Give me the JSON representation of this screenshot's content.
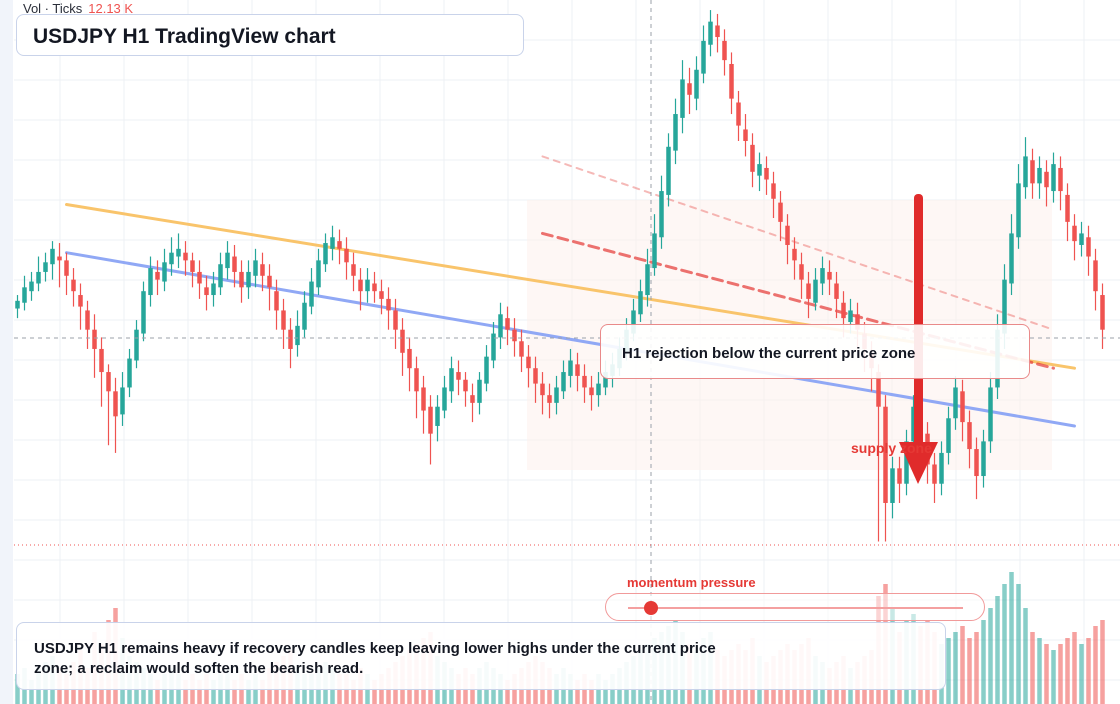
{
  "header": {
    "volume_label": "Vol · Ticks",
    "volume_value": "12.13 K",
    "title": "USDJPY H1 TradingView chart"
  },
  "annotations": {
    "rejection_note": "H1 rejection below the current price zone",
    "supply_label": "supply zone",
    "momentum_label": "momentum pressure",
    "momentum_level": 0.07,
    "summary": "USDJPY H1 remains heavy if recovery candles keep leaving lower highs under the current price zone; a reclaim would soften the bearish read."
  },
  "colors": {
    "bull": "#26a69a",
    "bear": "#ef5350",
    "resistance_line": "#f9c46b",
    "support_line": "#90a8f5",
    "arrow": "#e02b2b",
    "accent": "#e53935"
  },
  "chart_data": {
    "type": "candlestick",
    "timeframe": "H1",
    "symbol": "USDJPY",
    "y_axis": "unlabeled",
    "note": "Price values are relative levels (no price scale visible); volume values are relative.",
    "candles": [
      [
        161,
        165,
        156,
        168,
        153,
        5
      ],
      [
        164,
        172,
        160,
        178,
        150,
        6
      ],
      [
        170,
        175,
        165,
        180,
        162,
        4
      ],
      [
        174,
        180,
        170,
        188,
        166,
        6
      ],
      [
        180,
        185,
        175,
        190,
        172,
        7
      ],
      [
        184,
        192,
        176,
        196,
        170,
        8
      ],
      [
        188,
        186,
        172,
        195,
        168,
        6
      ],
      [
        186,
        178,
        168,
        190,
        160,
        5
      ],
      [
        176,
        170,
        162,
        182,
        155,
        7
      ],
      [
        168,
        162,
        150,
        174,
        120,
        9
      ],
      [
        160,
        150,
        140,
        165,
        130,
        6
      ],
      [
        150,
        140,
        125,
        158,
        40,
        12
      ],
      [
        140,
        128,
        110,
        146,
        100,
        10
      ],
      [
        128,
        118,
        90,
        132,
        80,
        14
      ],
      [
        118,
        105,
        86,
        125,
        70,
        16
      ],
      [
        106,
        120,
        100,
        128,
        96,
        11
      ],
      [
        120,
        135,
        115,
        140,
        110,
        8
      ],
      [
        134,
        150,
        130,
        155,
        124,
        7
      ],
      [
        148,
        170,
        144,
        175,
        140,
        6
      ],
      [
        168,
        182,
        162,
        188,
        156,
        5
      ],
      [
        180,
        176,
        168,
        186,
        160,
        4
      ],
      [
        175,
        185,
        170,
        192,
        165,
        5
      ],
      [
        184,
        190,
        178,
        198,
        172,
        6
      ],
      [
        188,
        192,
        182,
        200,
        176,
        5
      ],
      [
        190,
        186,
        178,
        196,
        172,
        4
      ],
      [
        186,
        180,
        172,
        190,
        166,
        5
      ],
      [
        180,
        174,
        166,
        186,
        160,
        4
      ],
      [
        172,
        168,
        160,
        178,
        154,
        5
      ],
      [
        168,
        174,
        162,
        180,
        156,
        4
      ],
      [
        172,
        184,
        168,
        190,
        164,
        5
      ],
      [
        182,
        190,
        176,
        196,
        170,
        6
      ],
      [
        188,
        180,
        172,
        194,
        166,
        4
      ],
      [
        180,
        172,
        164,
        186,
        158,
        5
      ],
      [
        172,
        180,
        166,
        186,
        160,
        4
      ],
      [
        178,
        186,
        172,
        192,
        168,
        5
      ],
      [
        184,
        178,
        170,
        190,
        164,
        4
      ],
      [
        178,
        172,
        160,
        184,
        155,
        6
      ],
      [
        170,
        160,
        150,
        176,
        145,
        7
      ],
      [
        160,
        150,
        140,
        166,
        120,
        8
      ],
      [
        150,
        140,
        130,
        156,
        115,
        9
      ],
      [
        142,
        152,
        136,
        160,
        128,
        6
      ],
      [
        150,
        164,
        146,
        170,
        140,
        5
      ],
      [
        162,
        175,
        158,
        182,
        150,
        5
      ],
      [
        172,
        186,
        168,
        192,
        162,
        6
      ],
      [
        184,
        195,
        180,
        200,
        174,
        7
      ],
      [
        192,
        198,
        186,
        204,
        180,
        6
      ],
      [
        196,
        192,
        184,
        202,
        178,
        5
      ],
      [
        192,
        185,
        176,
        198,
        170,
        5
      ],
      [
        184,
        178,
        170,
        190,
        164,
        4
      ],
      [
        176,
        170,
        160,
        182,
        154,
        6
      ],
      [
        170,
        176,
        164,
        182,
        160,
        5
      ],
      [
        174,
        170,
        164,
        180,
        158,
        4
      ],
      [
        170,
        166,
        158,
        176,
        150,
        5
      ],
      [
        166,
        160,
        150,
        172,
        144,
        6
      ],
      [
        160,
        150,
        140,
        166,
        134,
        7
      ],
      [
        150,
        138,
        126,
        156,
        118,
        8
      ],
      [
        140,
        130,
        118,
        146,
        110,
        9
      ],
      [
        130,
        118,
        104,
        136,
        96,
        10
      ],
      [
        120,
        108,
        96,
        126,
        86,
        11
      ],
      [
        110,
        96,
        80,
        116,
        70,
        12
      ],
      [
        100,
        110,
        92,
        116,
        80,
        8
      ],
      [
        108,
        120,
        104,
        126,
        98,
        7
      ],
      [
        118,
        130,
        112,
        136,
        106,
        6
      ],
      [
        128,
        124,
        116,
        134,
        110,
        5
      ],
      [
        124,
        118,
        110,
        128,
        104,
        6
      ],
      [
        116,
        112,
        102,
        122,
        96,
        5
      ],
      [
        112,
        124,
        106,
        128,
        100,
        6
      ],
      [
        122,
        136,
        118,
        142,
        112,
        7
      ],
      [
        134,
        148,
        130,
        154,
        126,
        6
      ],
      [
        146,
        158,
        140,
        164,
        134,
        5
      ],
      [
        156,
        150,
        142,
        162,
        136,
        4
      ],
      [
        150,
        144,
        136,
        156,
        130,
        5
      ],
      [
        144,
        136,
        128,
        150,
        122,
        6
      ],
      [
        136,
        130,
        120,
        142,
        114,
        7
      ],
      [
        130,
        122,
        112,
        136,
        106,
        8
      ],
      [
        122,
        116,
        106,
        128,
        100,
        7
      ],
      [
        116,
        112,
        104,
        122,
        98,
        6
      ],
      [
        112,
        120,
        106,
        126,
        100,
        5
      ],
      [
        118,
        128,
        114,
        134,
        108,
        6
      ],
      [
        126,
        134,
        120,
        140,
        116,
        5
      ],
      [
        132,
        126,
        118,
        138,
        112,
        4
      ],
      [
        126,
        120,
        112,
        132,
        104,
        5
      ],
      [
        120,
        116,
        108,
        126,
        100,
        4
      ],
      [
        116,
        122,
        110,
        128,
        104,
        5
      ],
      [
        120,
        128,
        116,
        134,
        112,
        4
      ],
      [
        126,
        132,
        120,
        138,
        116,
        5
      ],
      [
        130,
        140,
        126,
        146,
        120,
        6
      ],
      [
        138,
        150,
        134,
        156,
        130,
        7
      ],
      [
        148,
        160,
        144,
        166,
        140,
        8
      ],
      [
        158,
        170,
        154,
        176,
        150,
        9
      ],
      [
        168,
        184,
        162,
        192,
        158,
        10
      ],
      [
        182,
        200,
        178,
        210,
        172,
        11
      ],
      [
        198,
        222,
        192,
        230,
        188,
        12
      ],
      [
        220,
        245,
        214,
        252,
        206,
        13
      ],
      [
        243,
        262,
        236,
        270,
        230,
        14
      ],
      [
        260,
        280,
        252,
        290,
        246,
        12
      ],
      [
        278,
        272,
        262,
        286,
        256,
        10
      ],
      [
        270,
        285,
        264,
        292,
        258,
        9
      ],
      [
        283,
        300,
        278,
        308,
        272,
        11
      ],
      [
        298,
        310,
        292,
        316,
        286,
        12
      ],
      [
        308,
        302,
        294,
        314,
        290,
        9
      ],
      [
        300,
        290,
        282,
        306,
        276,
        8
      ],
      [
        288,
        270,
        262,
        294,
        256,
        9
      ],
      [
        268,
        256,
        248,
        274,
        240,
        10
      ],
      [
        254,
        248,
        240,
        262,
        232,
        9
      ],
      [
        246,
        232,
        224,
        252,
        218,
        11
      ],
      [
        230,
        236,
        222,
        242,
        214,
        8
      ],
      [
        234,
        228,
        220,
        240,
        212,
        7
      ],
      [
        226,
        218,
        208,
        232,
        200,
        8
      ],
      [
        216,
        206,
        196,
        222,
        188,
        9
      ],
      [
        204,
        194,
        184,
        210,
        176,
        10
      ],
      [
        192,
        186,
        176,
        198,
        168,
        9
      ],
      [
        184,
        176,
        166,
        190,
        158,
        10
      ],
      [
        174,
        166,
        156,
        180,
        148,
        11
      ],
      [
        164,
        176,
        160,
        182,
        154,
        8
      ],
      [
        174,
        182,
        168,
        188,
        162,
        7
      ],
      [
        180,
        176,
        168,
        186,
        160,
        6
      ],
      [
        174,
        166,
        156,
        180,
        150,
        7
      ],
      [
        164,
        156,
        146,
        170,
        140,
        8
      ],
      [
        154,
        160,
        148,
        166,
        142,
        6
      ],
      [
        158,
        150,
        140,
        164,
        134,
        7
      ],
      [
        148,
        140,
        128,
        154,
        122,
        8
      ],
      [
        138,
        130,
        118,
        144,
        110,
        9
      ],
      [
        128,
        110,
        40,
        132,
        30,
        18
      ],
      [
        110,
        60,
        40,
        116,
        34,
        20
      ],
      [
        60,
        78,
        52,
        84,
        46,
        16
      ],
      [
        78,
        70,
        60,
        84,
        54,
        12
      ],
      [
        70,
        92,
        64,
        98,
        58,
        14
      ],
      [
        92,
        110,
        86,
        116,
        80,
        15
      ],
      [
        108,
        96,
        84,
        114,
        76,
        13
      ],
      [
        96,
        80,
        70,
        102,
        62,
        14
      ],
      [
        80,
        70,
        60,
        86,
        52,
        12
      ],
      [
        70,
        86,
        64,
        92,
        58,
        10
      ],
      [
        86,
        104,
        80,
        110,
        74,
        11
      ],
      [
        104,
        120,
        98,
        126,
        92,
        12
      ],
      [
        118,
        102,
        92,
        124,
        84,
        13
      ],
      [
        102,
        88,
        78,
        108,
        70,
        11
      ],
      [
        88,
        74,
        62,
        94,
        56,
        12
      ],
      [
        74,
        92,
        68,
        98,
        62,
        14
      ],
      [
        92,
        120,
        86,
        128,
        80,
        16
      ],
      [
        120,
        150,
        114,
        158,
        108,
        18
      ],
      [
        148,
        176,
        140,
        184,
        132,
        20
      ],
      [
        174,
        200,
        168,
        210,
        160,
        22
      ],
      [
        198,
        226,
        192,
        236,
        186,
        20
      ],
      [
        224,
        240,
        218,
        250,
        210,
        16
      ],
      [
        238,
        226,
        218,
        244,
        210,
        12
      ],
      [
        226,
        234,
        218,
        240,
        212,
        11
      ],
      [
        232,
        224,
        214,
        238,
        206,
        10
      ],
      [
        222,
        236,
        216,
        242,
        210,
        9
      ],
      [
        234,
        222,
        212,
        240,
        206,
        10
      ],
      [
        220,
        206,
        196,
        226,
        188,
        11
      ],
      [
        204,
        196,
        186,
        210,
        178,
        12
      ],
      [
        194,
        200,
        188,
        206,
        182,
        10
      ],
      [
        198,
        188,
        178,
        204,
        170,
        11
      ],
      [
        186,
        170,
        160,
        192,
        150,
        13
      ],
      [
        168,
        150,
        140,
        174,
        120,
        14
      ]
    ],
    "trendlines": [
      {
        "kind": "resistance",
        "points": [
          [
            7,
            215
          ],
          [
            151,
            130
          ]
        ]
      },
      {
        "kind": "support",
        "points": [
          [
            7,
            190
          ],
          [
            151,
            100
          ]
        ]
      },
      {
        "kind": "dashed-down",
        "points": [
          [
            75,
            200
          ],
          [
            148,
            130
          ]
        ]
      },
      {
        "kind": "dashed-down-faint",
        "points": [
          [
            75,
            240
          ],
          [
            148,
            150
          ]
        ]
      }
    ]
  }
}
